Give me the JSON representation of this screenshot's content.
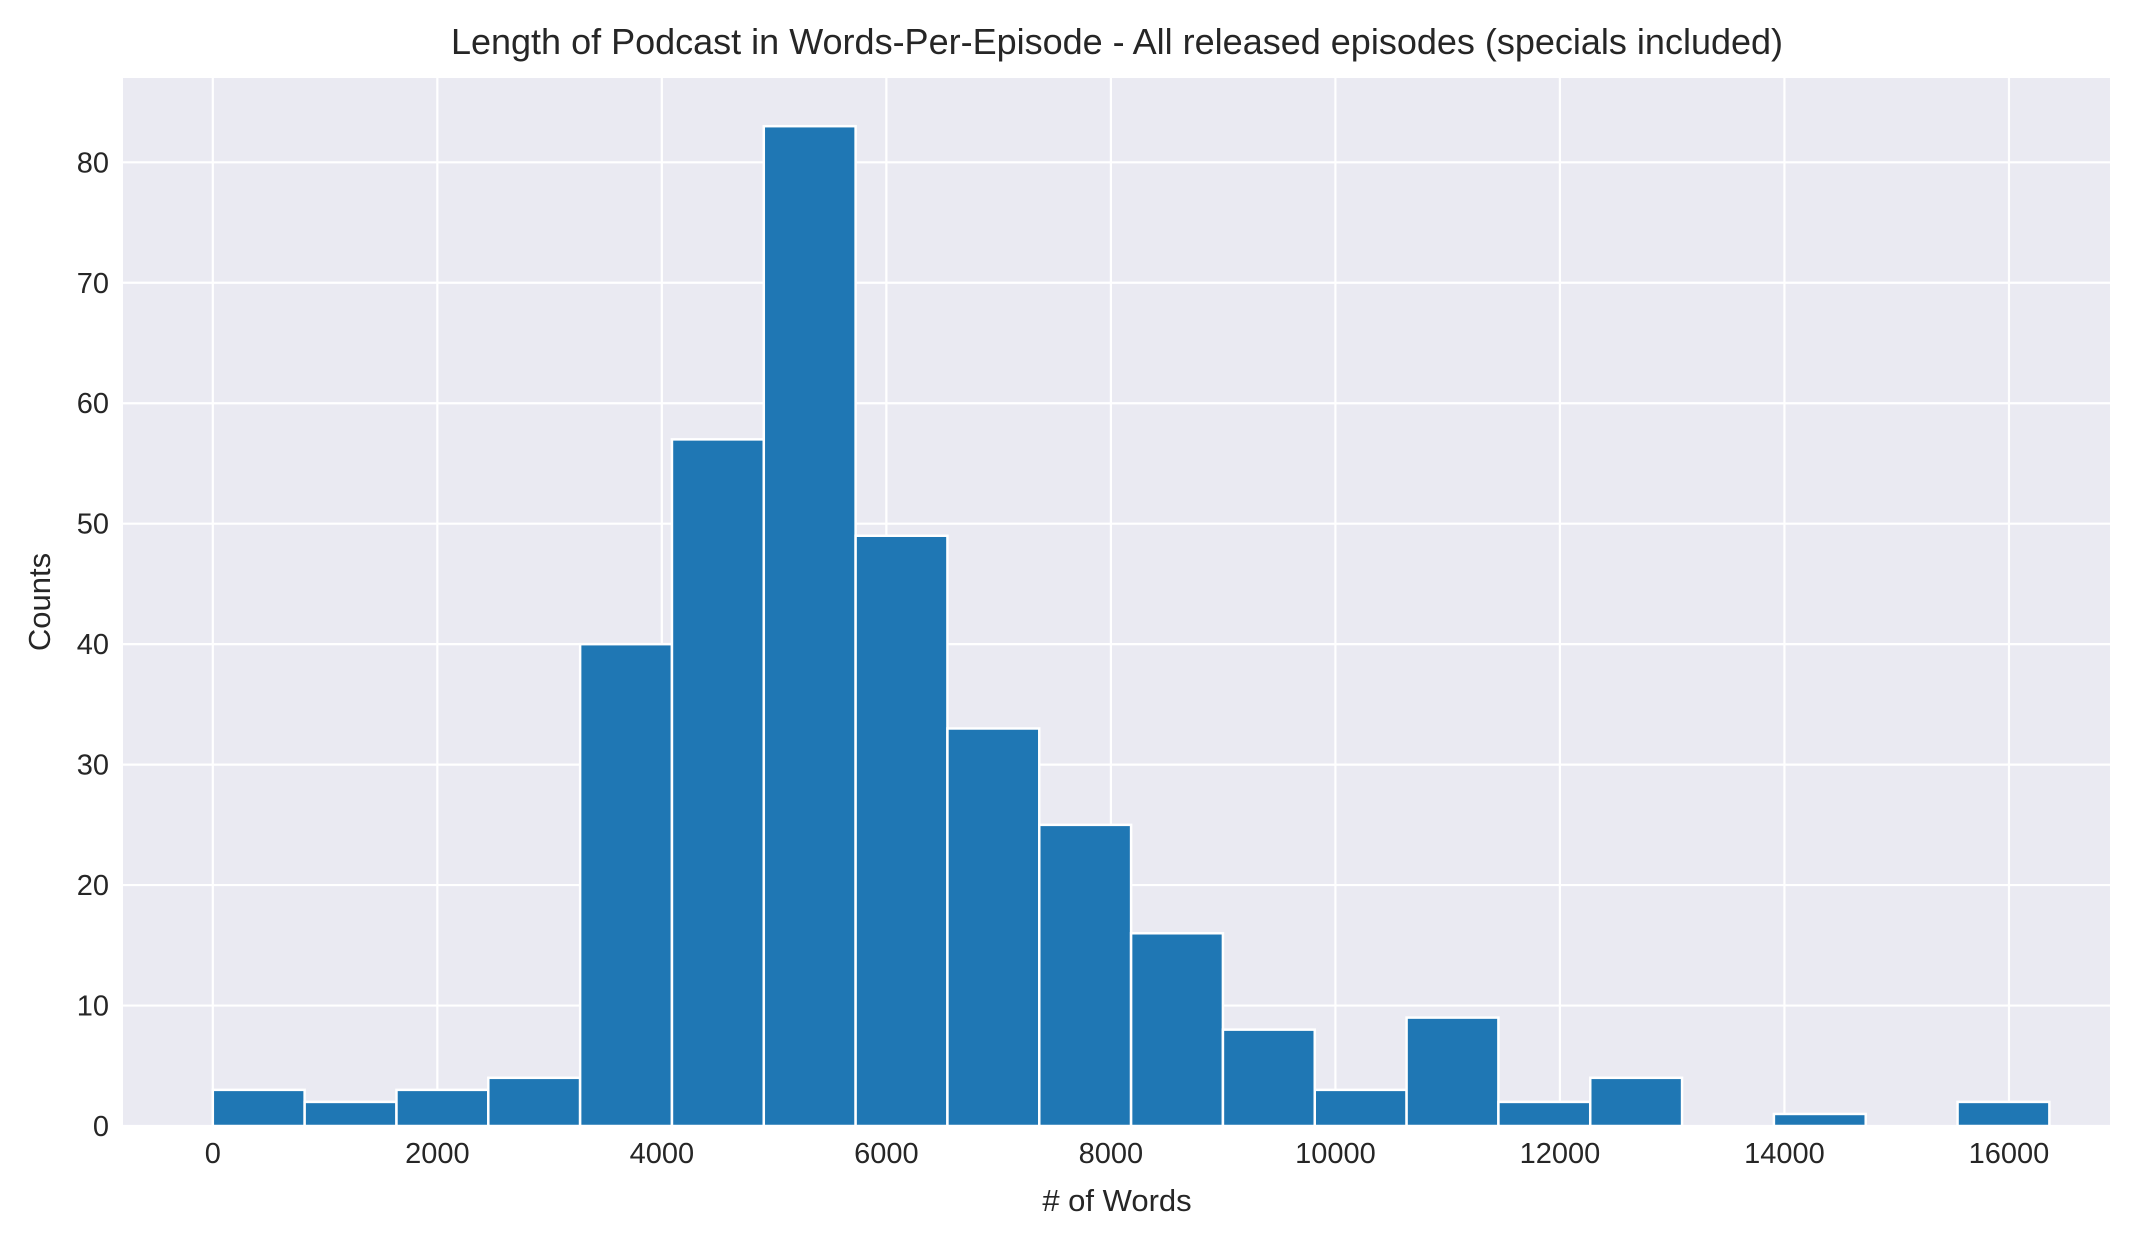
{
  "chart_data": {
    "type": "bar",
    "title": "Length of Podcast in Words-Per-Episode - All released episodes (specials included)",
    "xlabel": "# of Words",
    "ylabel": "Counts",
    "xlim": [
      -800,
      16900
    ],
    "ylim": [
      0,
      87
    ],
    "xticks": [
      0,
      2000,
      4000,
      6000,
      8000,
      10000,
      12000,
      14000,
      16000
    ],
    "yticks": [
      0,
      10,
      20,
      30,
      40,
      50,
      60,
      70,
      80
    ],
    "bins": [
      {
        "start": 0,
        "end": 818,
        "count": 3
      },
      {
        "start": 818,
        "end": 1636,
        "count": 2
      },
      {
        "start": 1636,
        "end": 2454,
        "count": 3
      },
      {
        "start": 2454,
        "end": 3272,
        "count": 4
      },
      {
        "start": 3272,
        "end": 4090,
        "count": 40
      },
      {
        "start": 4090,
        "end": 4908,
        "count": 57
      },
      {
        "start": 4908,
        "end": 5726,
        "count": 83
      },
      {
        "start": 5726,
        "end": 6544,
        "count": 49
      },
      {
        "start": 6544,
        "end": 7362,
        "count": 33
      },
      {
        "start": 7362,
        "end": 8180,
        "count": 25
      },
      {
        "start": 8180,
        "end": 8998,
        "count": 16
      },
      {
        "start": 8998,
        "end": 9816,
        "count": 8
      },
      {
        "start": 9816,
        "end": 10634,
        "count": 3
      },
      {
        "start": 10634,
        "end": 11452,
        "count": 9
      },
      {
        "start": 11452,
        "end": 12270,
        "count": 2
      },
      {
        "start": 12270,
        "end": 13088,
        "count": 4
      },
      {
        "start": 13088,
        "end": 13906,
        "count": 0
      },
      {
        "start": 13906,
        "end": 14724,
        "count": 1
      },
      {
        "start": 14724,
        "end": 15542,
        "count": 0
      },
      {
        "start": 15542,
        "end": 16360,
        "count": 2
      }
    ],
    "colors": {
      "bar": "#1f77b4",
      "plot_background": "#eaeaf2",
      "grid": "#ffffff"
    },
    "grid": true,
    "legend": "none"
  }
}
